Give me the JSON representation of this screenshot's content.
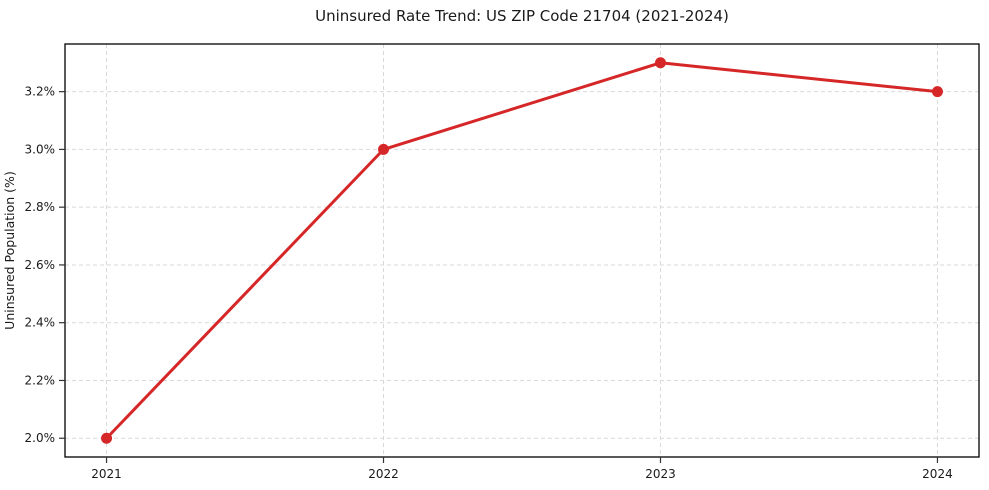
{
  "chart_data": {
    "type": "line",
    "title": "Uninsured Rate Trend: US ZIP Code 21704 (2021-2024)",
    "ylabel": "Uninsured Population (%)",
    "xlabel": "",
    "x": [
      2021,
      2022,
      2023,
      2024
    ],
    "values": [
      2.0,
      3.0,
      3.3,
      3.2
    ],
    "xticks": {
      "values": [
        2021,
        2022,
        2023,
        2024
      ],
      "labels": [
        "2021",
        "2022",
        "2023",
        "2024"
      ]
    },
    "yticks": {
      "values": [
        2.0,
        2.2,
        2.4,
        2.6,
        2.8,
        3.0,
        3.2
      ],
      "labels": [
        "2.0%",
        "2.2%",
        "2.4%",
        "2.6%",
        "2.8%",
        "3.0%",
        "3.2%"
      ]
    },
    "xlim": [
      2020.85,
      2024.15
    ],
    "ylim": [
      1.935,
      3.365
    ],
    "grid": true,
    "grid_style": "dashed",
    "legend_position": "none",
    "marker": "circle",
    "colors": {
      "line": "#d62728",
      "marker": "#d62728",
      "grid": "#d9d9d9",
      "axis_border": "#000000",
      "tick_mark": "#333333",
      "text": "#1a1a1a",
      "background": "#ffffff"
    }
  }
}
